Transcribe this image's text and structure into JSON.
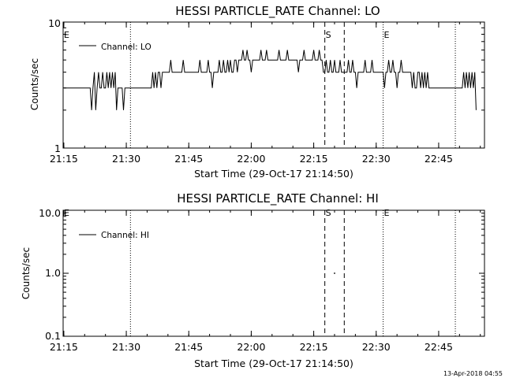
{
  "chart_data": [
    {
      "type": "line",
      "title": "HESSI PARTICLE_RATE Channel: LO",
      "xlabel": "Start Time (29-Oct-17 21:14:50)",
      "ylabel": "Counts/sec",
      "x_ticks": [
        "21:15",
        "21:30",
        "21:45",
        "22:00",
        "22:15",
        "22:30",
        "22:45"
      ],
      "y_scale": "log",
      "ylim": [
        1,
        10
      ],
      "y_ticks": [
        "1",
        "10"
      ],
      "legend": "Channel: LO",
      "legend_position": "top-left",
      "series": [
        {
          "name": "Channel: LO",
          "x_start": "21:15:00",
          "step_seconds": 20,
          "values": [
            3,
            3,
            3,
            3,
            3,
            3,
            3,
            3,
            3,
            3,
            3,
            3,
            3,
            3,
            3,
            3,
            3,
            3,
            3,
            3,
            2,
            3,
            4,
            2,
            3,
            4,
            3,
            3,
            4,
            3,
            3,
            4,
            3,
            4,
            3,
            4,
            3,
            4,
            2,
            3,
            3,
            3,
            3,
            2,
            3,
            3,
            3,
            3,
            3,
            3,
            3,
            3,
            3,
            3,
            3,
            3,
            3,
            3,
            3,
            3,
            3,
            3,
            3,
            3,
            4,
            3,
            4,
            3,
            4,
            4,
            3,
            4,
            4,
            4,
            4,
            4,
            4,
            5,
            4,
            4,
            4,
            4,
            4,
            4,
            4,
            4,
            5,
            4,
            4,
            4,
            4,
            4,
            4,
            4,
            4,
            4,
            4,
            4,
            5,
            4,
            4,
            4,
            4,
            4,
            5,
            4,
            4,
            3,
            4,
            4,
            4,
            4,
            5,
            4,
            4,
            5,
            4,
            4,
            5,
            4,
            5,
            4,
            4,
            5,
            5,
            4,
            5,
            5,
            5,
            6,
            5,
            5,
            6,
            5,
            5,
            4,
            5,
            5,
            5,
            5,
            5,
            5,
            6,
            5,
            5,
            5,
            6,
            5,
            5,
            5,
            5,
            5,
            5,
            5,
            5,
            6,
            5,
            5,
            5,
            5,
            5,
            6,
            5,
            5,
            5,
            5,
            5,
            5,
            5,
            4,
            5,
            5,
            5,
            6,
            5,
            5,
            5,
            5,
            5,
            5,
            6,
            5,
            5,
            5,
            6,
            5,
            5,
            4,
            4,
            5,
            4,
            4,
            5,
            4,
            4,
            5,
            4,
            4,
            4,
            5,
            4,
            4,
            4,
            4,
            4,
            5,
            4,
            4,
            5,
            4,
            4,
            3,
            4,
            4,
            4,
            4,
            4,
            5,
            4,
            4,
            4,
            4,
            5,
            4,
            4,
            4,
            4,
            4,
            4,
            4,
            4,
            3,
            4,
            4,
            5,
            4,
            4,
            5,
            4,
            4,
            3,
            4,
            4,
            5,
            4,
            4,
            4,
            4,
            4,
            4,
            4,
            3,
            4,
            3,
            3,
            4,
            4,
            3,
            4,
            3,
            4,
            3,
            4,
            3,
            3,
            3,
            3,
            3,
            3,
            3,
            3,
            3,
            3,
            3,
            3,
            3,
            3,
            3,
            3,
            3,
            3,
            3,
            3,
            3,
            3,
            3,
            3,
            3,
            4,
            3,
            4,
            3,
            4,
            3,
            4,
            3,
            4,
            2
          ]
        }
      ],
      "vlines": [
        {
          "time": "21:31:00",
          "style": "dotted",
          "label": ""
        },
        {
          "time": "22:17:40",
          "style": "dashed",
          "label": "S"
        },
        {
          "time": "22:22:20",
          "style": "dashed",
          "label": ""
        },
        {
          "time": "22:31:40",
          "style": "dotted",
          "label": "E"
        },
        {
          "time": "22:49:00",
          "style": "dotted",
          "label": ""
        }
      ],
      "corner_label": "E"
    },
    {
      "type": "line",
      "title": "HESSI PARTICLE_RATE Channel: HI",
      "xlabel": "Start Time (29-Oct-17 21:14:50)",
      "ylabel": "Counts/sec",
      "x_ticks": [
        "21:15",
        "21:30",
        "21:45",
        "22:00",
        "22:15",
        "22:30",
        "22:45"
      ],
      "y_scale": "log",
      "ylim": [
        0.1,
        10
      ],
      "y_ticks": [
        "0.1",
        "1.0",
        "10.0"
      ],
      "legend": "Channel: HI",
      "legend_position": "top-left",
      "series": [
        {
          "name": "Channel: HI",
          "points": [
            {
              "time": "22:20:00",
              "value": 1.0
            }
          ]
        }
      ],
      "vlines": [
        {
          "time": "21:31:00",
          "style": "dotted",
          "label": ""
        },
        {
          "time": "22:17:40",
          "style": "dashed",
          "label": "S"
        },
        {
          "time": "22:22:20",
          "style": "dashed",
          "label": ""
        },
        {
          "time": "22:31:40",
          "style": "dotted",
          "label": "E"
        },
        {
          "time": "22:49:00",
          "style": "dotted",
          "label": ""
        }
      ],
      "corner_label": "E"
    }
  ],
  "footer": {
    "timestamp": "13-Apr-2018 04:55"
  }
}
